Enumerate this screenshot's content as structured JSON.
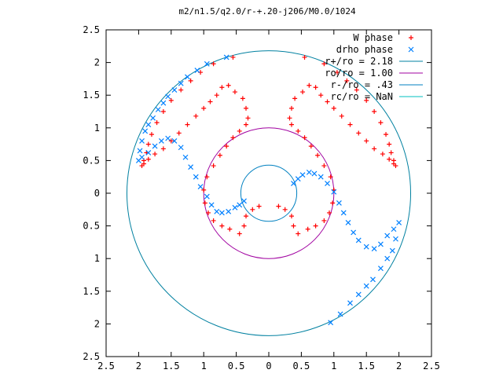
{
  "chart_data": {
    "type": "scatter",
    "title": "m2/n1.5/q2.0/r-+.20-j206/M0.0/1024",
    "xlabel": "",
    "ylabel": "",
    "xlim": [
      -2.5,
      2.5
    ],
    "ylim": [
      -2.5,
      2.5
    ],
    "x_ticks": [
      -2.5,
      -2,
      -1.5,
      -1,
      -0.5,
      0,
      0.5,
      1,
      1.5,
      2,
      2.5
    ],
    "y_ticks": [
      -2.5,
      -2,
      -1.5,
      -1,
      -0.5,
      0,
      0.5,
      1,
      1.5,
      2,
      2.5
    ],
    "x_tick_labels": [
      "2.5",
      "2",
      "1.5",
      "1",
      "0.5",
      "0",
      "0.5",
      "1",
      "1.5",
      "2",
      "2.5"
    ],
    "y_tick_labels": [
      "2.5",
      "2",
      "1.5",
      "1",
      "0.5",
      "0",
      "0.5",
      "1",
      "1.5",
      "2",
      "2.5"
    ],
    "grid": false,
    "legend_position": "top-right",
    "series": [
      {
        "name": "W phase",
        "marker": "plus",
        "color": "#ff0000",
        "points": [
          [
            -0.55,
            2.08
          ],
          [
            -0.85,
            1.98
          ],
          [
            -1.05,
            1.85
          ],
          [
            -1.2,
            1.72
          ],
          [
            -1.35,
            1.58
          ],
          [
            -1.5,
            1.42
          ],
          [
            -1.62,
            1.25
          ],
          [
            -1.72,
            1.08
          ],
          [
            -1.8,
            0.9
          ],
          [
            -1.85,
            0.75
          ],
          [
            -1.88,
            0.62
          ],
          [
            -1.92,
            0.5
          ],
          [
            -1.95,
            0.42
          ],
          [
            -1.92,
            0.45
          ],
          [
            -1.85,
            0.52
          ],
          [
            -1.75,
            0.6
          ],
          [
            -1.62,
            0.68
          ],
          [
            -1.5,
            0.8
          ],
          [
            -1.38,
            0.92
          ],
          [
            -1.25,
            1.05
          ],
          [
            -1.12,
            1.18
          ],
          [
            -1.0,
            1.3
          ],
          [
            -0.9,
            1.4
          ],
          [
            -0.8,
            1.5
          ],
          [
            -0.72,
            1.62
          ],
          [
            -0.62,
            1.65
          ],
          [
            -0.52,
            1.55
          ],
          [
            -0.4,
            1.45
          ],
          [
            -0.35,
            1.3
          ],
          [
            -0.32,
            1.15
          ],
          [
            -0.35,
            1.05
          ],
          [
            -0.45,
            0.95
          ],
          [
            -0.55,
            0.85
          ],
          [
            -0.65,
            0.72
          ],
          [
            -0.75,
            0.58
          ],
          [
            -0.85,
            0.42
          ],
          [
            -0.95,
            0.25
          ],
          [
            -1.0,
            0.05
          ],
          [
            -0.98,
            -0.15
          ],
          [
            -0.93,
            -0.3
          ],
          [
            -0.85,
            -0.42
          ],
          [
            -0.72,
            -0.5
          ],
          [
            -0.6,
            -0.55
          ],
          [
            -0.45,
            -0.62
          ],
          [
            -0.38,
            -0.5
          ],
          [
            -0.35,
            -0.35
          ],
          [
            -0.25,
            -0.25
          ],
          [
            -0.15,
            -0.2
          ],
          [
            0.55,
            2.08
          ],
          [
            0.85,
            1.98
          ],
          [
            1.05,
            1.85
          ],
          [
            1.2,
            1.72
          ],
          [
            1.35,
            1.58
          ],
          [
            1.5,
            1.42
          ],
          [
            1.62,
            1.25
          ],
          [
            1.72,
            1.08
          ],
          [
            1.8,
            0.9
          ],
          [
            1.85,
            0.75
          ],
          [
            1.88,
            0.62
          ],
          [
            1.92,
            0.5
          ],
          [
            1.95,
            0.42
          ],
          [
            1.92,
            0.45
          ],
          [
            1.85,
            0.52
          ],
          [
            1.75,
            0.6
          ],
          [
            1.62,
            0.68
          ],
          [
            1.5,
            0.8
          ],
          [
            1.38,
            0.92
          ],
          [
            1.25,
            1.05
          ],
          [
            1.12,
            1.18
          ],
          [
            1.0,
            1.3
          ],
          [
            0.9,
            1.4
          ],
          [
            0.8,
            1.5
          ],
          [
            0.72,
            1.62
          ],
          [
            0.62,
            1.65
          ],
          [
            0.52,
            1.55
          ],
          [
            0.4,
            1.45
          ],
          [
            0.35,
            1.3
          ],
          [
            0.32,
            1.15
          ],
          [
            0.35,
            1.05
          ],
          [
            0.45,
            0.95
          ],
          [
            0.55,
            0.85
          ],
          [
            0.65,
            0.72
          ],
          [
            0.75,
            0.58
          ],
          [
            0.85,
            0.42
          ],
          [
            0.95,
            0.25
          ],
          [
            1.0,
            0.05
          ],
          [
            0.98,
            -0.15
          ],
          [
            0.93,
            -0.3
          ],
          [
            0.85,
            -0.42
          ],
          [
            0.72,
            -0.5
          ],
          [
            0.6,
            -0.55
          ],
          [
            0.45,
            -0.62
          ],
          [
            0.38,
            -0.5
          ],
          [
            0.35,
            -0.35
          ],
          [
            0.25,
            -0.25
          ],
          [
            0.15,
            -0.2
          ]
        ]
      },
      {
        "name": "drho phase",
        "marker": "cross",
        "color": "#0080ff",
        "points": [
          [
            -2.0,
            0.5
          ],
          [
            -1.98,
            0.65
          ],
          [
            -1.95,
            0.8
          ],
          [
            -1.9,
            0.95
          ],
          [
            -1.85,
            1.05
          ],
          [
            -1.78,
            1.15
          ],
          [
            -1.7,
            1.28
          ],
          [
            -1.62,
            1.38
          ],
          [
            -1.55,
            1.48
          ],
          [
            -1.45,
            1.58
          ],
          [
            -1.35,
            1.68
          ],
          [
            -1.25,
            1.78
          ],
          [
            -1.1,
            1.88
          ],
          [
            -0.95,
            1.98
          ],
          [
            -0.65,
            2.08
          ],
          [
            -1.95,
            0.55
          ],
          [
            -1.85,
            0.62
          ],
          [
            -1.75,
            0.72
          ],
          [
            -1.65,
            0.8
          ],
          [
            -1.55,
            0.84
          ],
          [
            -1.45,
            0.8
          ],
          [
            -1.35,
            0.7
          ],
          [
            -1.28,
            0.55
          ],
          [
            -1.2,
            0.4
          ],
          [
            -1.12,
            0.25
          ],
          [
            -1.05,
            0.1
          ],
          [
            -0.95,
            -0.05
          ],
          [
            -0.88,
            -0.18
          ],
          [
            -0.8,
            -0.28
          ],
          [
            -0.72,
            -0.3
          ],
          [
            -0.62,
            -0.28
          ],
          [
            -0.52,
            -0.22
          ],
          [
            -0.45,
            -0.18
          ],
          [
            -0.38,
            -0.12
          ],
          [
            0.38,
            0.15
          ],
          [
            0.45,
            0.22
          ],
          [
            0.52,
            0.28
          ],
          [
            0.62,
            0.32
          ],
          [
            0.7,
            0.3
          ],
          [
            0.8,
            0.25
          ],
          [
            0.9,
            0.15
          ],
          [
            1.0,
            0.02
          ],
          [
            1.08,
            -0.15
          ],
          [
            1.15,
            -0.3
          ],
          [
            1.22,
            -0.45
          ],
          [
            1.3,
            -0.6
          ],
          [
            1.38,
            -0.72
          ],
          [
            1.5,
            -0.82
          ],
          [
            1.62,
            -0.85
          ],
          [
            1.72,
            -0.78
          ],
          [
            1.82,
            -0.65
          ],
          [
            1.92,
            -0.55
          ],
          [
            2.0,
            -0.45
          ],
          [
            1.95,
            -0.7
          ],
          [
            1.9,
            -0.88
          ],
          [
            1.82,
            -1.0
          ],
          [
            1.72,
            -1.15
          ],
          [
            1.6,
            -1.32
          ],
          [
            1.5,
            -1.42
          ],
          [
            1.38,
            -1.55
          ],
          [
            1.25,
            -1.68
          ],
          [
            1.1,
            -1.85
          ],
          [
            0.95,
            -1.98
          ]
        ]
      }
    ],
    "circles": [
      {
        "name": "r+/ro = 2.18",
        "r": 2.18,
        "color": "#0080a0"
      },
      {
        "name": "ro/ro = 1.00",
        "r": 1.0,
        "color": "#a000a0"
      },
      {
        "name": "r-/ro = .43",
        "r": 0.43,
        "color": "#0080c0"
      },
      {
        "name": "rc/ro = NaN",
        "r": null,
        "color": "#00c0c0"
      }
    ]
  }
}
